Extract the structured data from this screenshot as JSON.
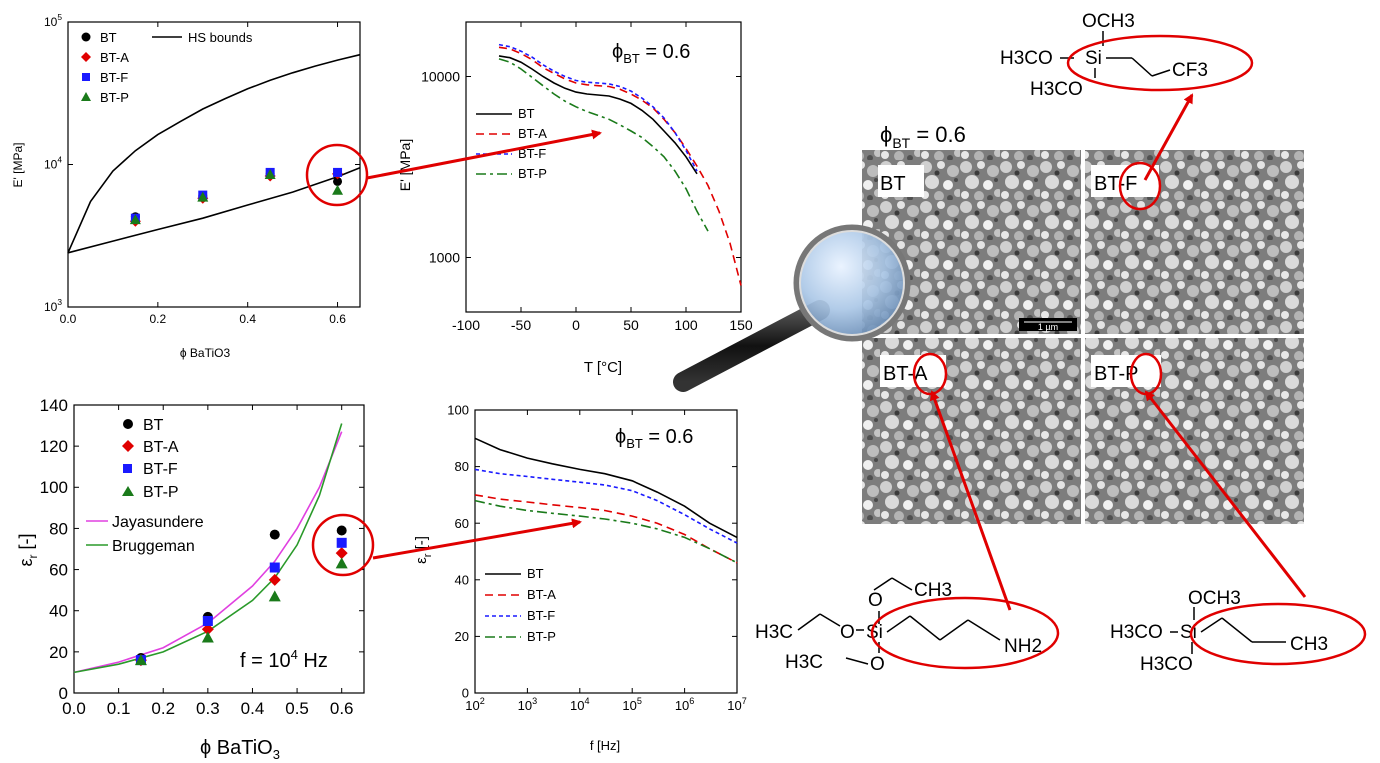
{
  "chart_data": [
    {
      "id": "p1",
      "type": "scatter",
      "xlabel": "ϕ BaTiO3",
      "ylabel": "E' [MPa]",
      "log_y": true,
      "xlim": [
        0,
        0.65
      ],
      "ylim": [
        1000,
        100000
      ],
      "x_ticks": [
        "0.0",
        "0.2",
        "0.4",
        "0.6"
      ],
      "y_ticks": [
        "10^3",
        "10^4",
        "10^5"
      ],
      "series": [
        {
          "name": "BT",
          "color": "#000000",
          "marker": "circle",
          "x": [
            0.15,
            0.3,
            0.45,
            0.6
          ],
          "y": [
            4300,
            6000,
            8600,
            7600
          ]
        },
        {
          "name": "BT-A",
          "color": "#e00000",
          "marker": "diamond",
          "x": [
            0.15,
            0.3,
            0.45,
            0.6
          ],
          "y": [
            4000,
            5800,
            8300,
            8600
          ]
        },
        {
          "name": "BT-F",
          "color": "#1a1aff",
          "marker": "square",
          "x": [
            0.15,
            0.3,
            0.45,
            0.6
          ],
          "y": [
            4200,
            6100,
            8800,
            8800
          ]
        },
        {
          "name": "BT-P",
          "color": "#1a7a1a",
          "marker": "triangle",
          "x": [
            0.15,
            0.3,
            0.45,
            0.6
          ],
          "y": [
            4100,
            5900,
            8500,
            6600
          ]
        }
      ],
      "lines": [
        {
          "name": "HS bounds",
          "color": "#000000",
          "x": [
            0,
            0.05,
            0.1,
            0.15,
            0.2,
            0.25,
            0.3,
            0.35,
            0.4,
            0.45,
            0.5,
            0.55,
            0.6,
            0.65
          ],
          "y": [
            2400,
            5500,
            9000,
            12500,
            16200,
            20000,
            24500,
            29000,
            34000,
            39000,
            44000,
            49000,
            54000,
            59000
          ]
        },
        {
          "name": "",
          "color": "#000000",
          "x": [
            0,
            0.1,
            0.2,
            0.3,
            0.4,
            0.5,
            0.6,
            0.65
          ],
          "y": [
            2400,
            2900,
            3500,
            4200,
            5200,
            6400,
            8200,
            9500
          ]
        }
      ]
    },
    {
      "id": "p2",
      "type": "line",
      "annotation": "ϕBT = 0.6",
      "xlabel": "T [°C]",
      "ylabel": "E' [MPa]",
      "log_y": true,
      "xlim": [
        -100,
        150
      ],
      "ylim": [
        500,
        20000
      ],
      "x_ticks": [
        "-100",
        "-50",
        "0",
        "50",
        "100",
        "150"
      ],
      "y_ticks": [
        "1000",
        "10000"
      ],
      "series": [
        {
          "name": "BT",
          "color": "#000000",
          "dash": "",
          "x": [
            -70,
            -60,
            -50,
            -40,
            -30,
            -20,
            -10,
            0,
            10,
            20,
            30,
            40,
            50,
            60,
            70,
            80,
            90,
            100,
            110
          ],
          "y": [
            13000,
            12700,
            12000,
            11000,
            10000,
            9200,
            8600,
            8200,
            8000,
            7900,
            7800,
            7500,
            7100,
            6500,
            5800,
            5000,
            4300,
            3600,
            2900
          ]
        },
        {
          "name": "BT-A",
          "color": "#e00000",
          "dash": "8,5",
          "x": [
            -70,
            -60,
            -50,
            -40,
            -30,
            -20,
            -10,
            0,
            10,
            20,
            30,
            40,
            50,
            60,
            70,
            80,
            90,
            100,
            110,
            120,
            130,
            140,
            150
          ],
          "y": [
            14500,
            14200,
            13400,
            12400,
            11200,
            10400,
            9700,
            9200,
            9000,
            8900,
            8800,
            8500,
            8000,
            7400,
            6700,
            5800,
            4900,
            4000,
            3200,
            2500,
            1800,
            1200,
            700
          ]
        },
        {
          "name": "BT-F",
          "color": "#1a1aff",
          "dash": "4,3",
          "x": [
            -70,
            -60,
            -50,
            -40,
            -30,
            -20,
            -10,
            0,
            10,
            20,
            30,
            40,
            50,
            60,
            70,
            80,
            90,
            100,
            110
          ],
          "y": [
            15000,
            14600,
            13800,
            12800,
            11600,
            10700,
            10000,
            9500,
            9300,
            9200,
            9100,
            8800,
            8300,
            7600,
            6800,
            5900,
            4900,
            3900,
            3000
          ]
        },
        {
          "name": "BT-P",
          "color": "#1a7a1a",
          "dash": "10,4,3,4",
          "x": [
            -70,
            -60,
            -50,
            -40,
            -30,
            -20,
            -10,
            0,
            10,
            20,
            30,
            40,
            50,
            60,
            70,
            80,
            90,
            100,
            110,
            120
          ],
          "y": [
            12500,
            12000,
            11000,
            9900,
            8900,
            8000,
            7300,
            6800,
            6400,
            6100,
            5800,
            5400,
            5000,
            4600,
            4100,
            3600,
            3000,
            2400,
            1800,
            1400
          ]
        }
      ]
    },
    {
      "id": "p3",
      "type": "scatter",
      "xlabel": "ϕ BaTiO3",
      "ylabel": "εr [-]",
      "annotation": "f = 10^4 Hz",
      "xlim": [
        0,
        0.65
      ],
      "ylim": [
        0,
        140
      ],
      "x_ticks": [
        "0.0",
        "0.1",
        "0.2",
        "0.3",
        "0.4",
        "0.5",
        "0.6"
      ],
      "y_ticks": [
        "0",
        "20",
        "40",
        "60",
        "80",
        "100",
        "120",
        "140"
      ],
      "series": [
        {
          "name": "BT",
          "color": "#000000",
          "marker": "circle",
          "x": [
            0.15,
            0.3,
            0.45,
            0.6
          ],
          "y": [
            17,
            37,
            77,
            79
          ]
        },
        {
          "name": "BT-A",
          "color": "#e00000",
          "marker": "diamond",
          "x": [
            0.15,
            0.3,
            0.45,
            0.6
          ],
          "y": [
            16,
            31,
            55,
            68
          ]
        },
        {
          "name": "BT-F",
          "color": "#1a1aff",
          "marker": "square",
          "x": [
            0.15,
            0.3,
            0.45,
            0.6
          ],
          "y": [
            16,
            35,
            61,
            73
          ]
        },
        {
          "name": "BT-P",
          "color": "#1a7a1a",
          "marker": "triangle",
          "x": [
            0.15,
            0.3,
            0.45,
            0.6
          ],
          "y": [
            16,
            27,
            47,
            63
          ]
        }
      ],
      "lines": [
        {
          "name": "Jayasundere",
          "color": "#e040e0",
          "x": [
            0,
            0.1,
            0.2,
            0.3,
            0.4,
            0.45,
            0.5,
            0.55,
            0.6
          ],
          "y": [
            10,
            15,
            22,
            34,
            52,
            64,
            80,
            100,
            127
          ]
        },
        {
          "name": "Bruggeman",
          "color": "#2a9a2a",
          "x": [
            0,
            0.1,
            0.2,
            0.3,
            0.4,
            0.45,
            0.5,
            0.55,
            0.6
          ],
          "y": [
            10,
            14,
            20,
            30,
            45,
            56,
            72,
            96,
            131
          ]
        }
      ]
    },
    {
      "id": "p4",
      "type": "line",
      "annotation": "ϕBT = 0.6",
      "xlabel": "f [Hz]",
      "ylabel": "εr [-]",
      "log_x": true,
      "xlim": [
        100,
        10000000
      ],
      "ylim": [
        0,
        100
      ],
      "x_ticks": [
        "10^2",
        "10^3",
        "10^4",
        "10^5",
        "10^6",
        "10^7"
      ],
      "y_ticks": [
        "0",
        "20",
        "40",
        "60",
        "80",
        "100"
      ],
      "series": [
        {
          "name": "BT",
          "color": "#000000",
          "dash": "",
          "x": [
            100,
            300,
            1000,
            3000,
            10000,
            30000,
            100000,
            300000,
            1000000,
            3000000,
            10000000
          ],
          "y": [
            90,
            86,
            83,
            81,
            79,
            77.5,
            75,
            71,
            66,
            60,
            55
          ]
        },
        {
          "name": "BT-A",
          "color": "#e00000",
          "dash": "8,5",
          "x": [
            100,
            300,
            1000,
            3000,
            10000,
            30000,
            100000,
            300000,
            1000000,
            3000000,
            10000000
          ],
          "y": [
            70,
            68.5,
            67.5,
            66.5,
            65.5,
            64.5,
            62.5,
            60,
            56,
            51,
            46
          ]
        },
        {
          "name": "BT-F",
          "color": "#1a1aff",
          "dash": "4,3",
          "x": [
            100,
            300,
            1000,
            3000,
            10000,
            30000,
            100000,
            300000,
            1000000,
            3000000,
            10000000
          ],
          "y": [
            79,
            77.5,
            76.5,
            75.5,
            74.5,
            73.5,
            71.5,
            68,
            63,
            58,
            53
          ]
        },
        {
          "name": "BT-P",
          "color": "#1a7a1a",
          "dash": "10,4,3,4",
          "x": [
            100,
            300,
            1000,
            3000,
            10000,
            30000,
            100000,
            300000,
            1000000,
            3000000,
            10000000
          ],
          "y": [
            68,
            66,
            64.5,
            63.5,
            62.5,
            61.5,
            60,
            58,
            55,
            51,
            46
          ]
        }
      ]
    }
  ],
  "sem": {
    "phi_label": "ϕBT = 0.6",
    "scalebar": "1 µm",
    "tiles": [
      "BT",
      "BT-F",
      "BT-A",
      "BT-P"
    ]
  },
  "molecules": {
    "F": {
      "och3_top": "OCH3",
      "h3co_left": "H3CO",
      "si": "Si",
      "h3co_bottom": "H3CO",
      "tail": "CF3"
    },
    "A": {
      "ch3_top": "CH3",
      "h3c_left": "H3C",
      "o_mid": "O",
      "si": "Si",
      "h3c_bottom": "H3C",
      "tail": "NH2"
    },
    "P": {
      "och3_top": "OCH3",
      "h3co_left": "H3CO",
      "si": "Si",
      "h3co_bottom": "H3CO",
      "tail": "CH3"
    }
  },
  "colors": {
    "accent": "#e00000"
  }
}
